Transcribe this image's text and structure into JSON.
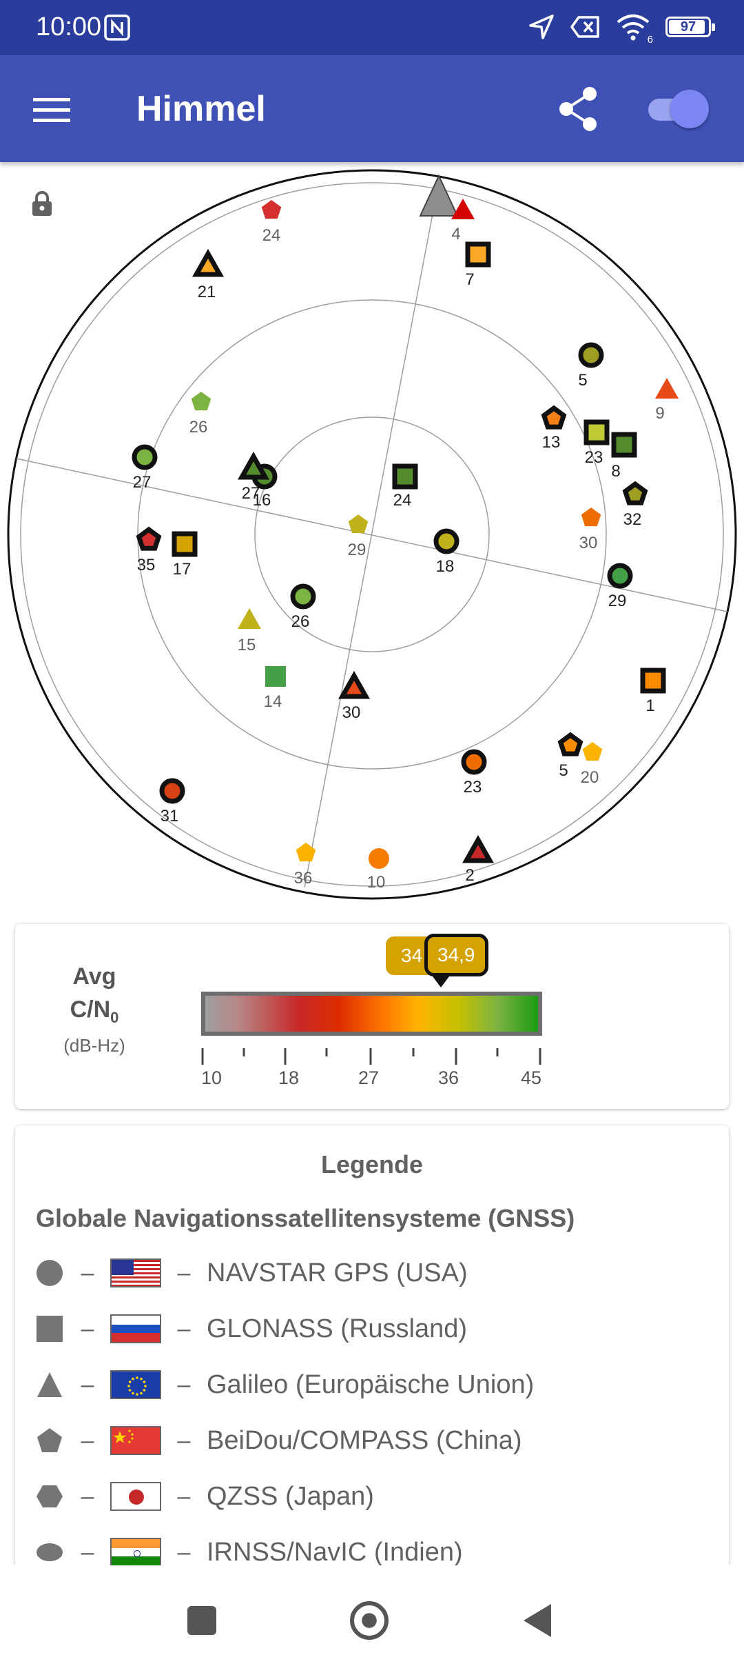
{
  "status_bar": {
    "time": "10:00",
    "battery": "97",
    "wifi_label": "6"
  },
  "app_bar": {
    "title": "Himmel"
  },
  "colors": {
    "status_bar": "#2b3d9c",
    "app_bar": "#3f51b5",
    "toggle_thumb": "#7b86f3"
  },
  "sky_plot": {
    "satellites": [
      {
        "label": "24",
        "shape": "pentagon",
        "color": "#d32f2f",
        "outlined": false
      },
      {
        "label": "21",
        "shape": "triangle",
        "color": "#f9a825",
        "outlined": true
      },
      {
        "label": "4",
        "shape": "triangle",
        "color": "#d50000",
        "outlined": false
      },
      {
        "label": "7",
        "shape": "square",
        "color": "#f9a825",
        "outlined": true
      },
      {
        "label": "5",
        "shape": "circle",
        "color": "#9e9d24",
        "outlined": true
      },
      {
        "label": "9",
        "shape": "triangle",
        "color": "#e64a19",
        "outlined": false
      },
      {
        "label": "26",
        "shape": "pentagon",
        "color": "#7cb342",
        "outlined": false
      },
      {
        "label": "27",
        "shape": "circle",
        "color": "#7cb342",
        "outlined": true
      },
      {
        "label": "13",
        "shape": "pentagon",
        "color": "#f57f17",
        "outlined": true
      },
      {
        "label": "23",
        "shape": "square",
        "color": "#c0ca33",
        "outlined": true
      },
      {
        "label": "8",
        "shape": "square",
        "color": "#558b2f",
        "outlined": true
      },
      {
        "label": "24",
        "shape": "square",
        "color": "#558b2f",
        "outlined": true
      },
      {
        "label": "16",
        "shape": "circle",
        "color": "#558b2f",
        "outlined": true
      },
      {
        "label": "27",
        "shape": "triangle",
        "color": "#558b2f",
        "outlined": true
      },
      {
        "label": "32",
        "shape": "pentagon",
        "color": "#9e9d24",
        "outlined": true
      },
      {
        "label": "29",
        "shape": "pentagon",
        "color": "#c0b21a",
        "outlined": false
      },
      {
        "label": "18",
        "shape": "circle",
        "color": "#c0b21a",
        "outlined": true
      },
      {
        "label": "30",
        "shape": "pentagon",
        "color": "#ef6c00",
        "outlined": false
      },
      {
        "label": "35",
        "shape": "pentagon",
        "color": "#d32f2f",
        "outlined": true
      },
      {
        "label": "17",
        "shape": "square",
        "color": "#d4a300",
        "outlined": true
      },
      {
        "label": "29",
        "shape": "circle",
        "color": "#43a047",
        "outlined": true
      },
      {
        "label": "26",
        "shape": "circle",
        "color": "#7cb342",
        "outlined": true
      },
      {
        "label": "15",
        "shape": "triangle",
        "color": "#c0b21a",
        "outlined": false
      },
      {
        "label": "14",
        "shape": "square",
        "color": "#43a047",
        "outlined": false
      },
      {
        "label": "30",
        "shape": "triangle",
        "color": "#e64a19",
        "outlined": true
      },
      {
        "label": "1",
        "shape": "square",
        "color": "#fb8c00",
        "outlined": true
      },
      {
        "label": "5",
        "shape": "pentagon",
        "color": "#fb8c00",
        "outlined": true
      },
      {
        "label": "20",
        "shape": "pentagon",
        "color": "#fbb300",
        "outlined": false
      },
      {
        "label": "23",
        "shape": "circle",
        "color": "#ef6c00",
        "outlined": true
      },
      {
        "label": "31",
        "shape": "circle",
        "color": "#d84315",
        "outlined": true
      },
      {
        "label": "36",
        "shape": "pentagon",
        "color": "#fbb300",
        "outlined": false
      },
      {
        "label": "10",
        "shape": "circle",
        "color": "#f57c00",
        "outlined": false
      },
      {
        "label": "2",
        "shape": "triangle",
        "color": "#c62828",
        "outlined": true
      }
    ]
  },
  "cn0": {
    "avg_label": "Avg",
    "label_main": "C/N",
    "label_sub": "0",
    "unit": "(dB-Hz)",
    "bubble_a": "34",
    "bubble_b": "34,9",
    "ticks": [
      "10",
      "18",
      "27",
      "36",
      "45"
    ]
  },
  "legend": {
    "title": "Legende",
    "section_title": "Globale Navigationssatellitensysteme (GNSS)",
    "separator": "–",
    "items": [
      {
        "shape": "circle",
        "flag": "usa",
        "name": "NAVSTAR GPS (USA)"
      },
      {
        "shape": "square",
        "flag": "russia",
        "name": "GLONASS (Russland)"
      },
      {
        "shape": "triangle",
        "flag": "eu",
        "name": "Galileo (Europäische Union)"
      },
      {
        "shape": "pentagon",
        "flag": "china",
        "name": "BeiDou/COMPASS (China)"
      },
      {
        "shape": "hexagon",
        "flag": "japan",
        "name": "QZSS (Japan)"
      },
      {
        "shape": "ellipse",
        "flag": "india",
        "name": "IRNSS/NavIC (Indien)"
      }
    ]
  }
}
